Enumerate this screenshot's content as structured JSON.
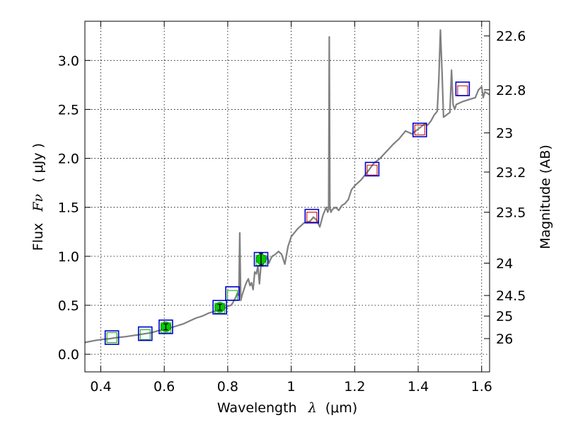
{
  "chart_data": {
    "type": "line",
    "xlabel": "Wavelength",
    "xlabel_symbol": "λ",
    "xlabel_unit": "(μm)",
    "ylabel_prefix": "Flux",
    "ylabel_symbol": "Fν",
    "ylabel_unit": "( μJy )",
    "right_label": "Magnitude (AB)",
    "xlim": [
      0.35,
      1.625
    ],
    "ylim": [
      -0.18,
      3.4
    ],
    "grid": true,
    "x_ticks": [
      {
        "value": 0.4,
        "label": "0.4"
      },
      {
        "value": 0.6,
        "label": "0.6"
      },
      {
        "value": 0.8,
        "label": "0.8"
      },
      {
        "value": 1.0,
        "label": "1"
      },
      {
        "value": 1.2,
        "label": "1.2"
      },
      {
        "value": 1.4,
        "label": "1.4"
      },
      {
        "value": 1.6,
        "label": "1.6"
      }
    ],
    "y_ticks": [
      {
        "value": 0.0,
        "label": "0.0"
      },
      {
        "value": 0.5,
        "label": "0.5"
      },
      {
        "value": 1.0,
        "label": "1.0"
      },
      {
        "value": 1.5,
        "label": "1.5"
      },
      {
        "value": 2.0,
        "label": "2.0"
      },
      {
        "value": 2.5,
        "label": "2.5"
      },
      {
        "value": 3.0,
        "label": "3.0"
      }
    ],
    "mag_ticks": [
      {
        "flux": 3.25,
        "label": "22.6"
      },
      {
        "flux": 2.7,
        "label": "22.8"
      },
      {
        "flux": 2.26,
        "label": "23"
      },
      {
        "flux": 1.86,
        "label": "23.2"
      },
      {
        "flux": 1.45,
        "label": "23.5"
      },
      {
        "flux": 0.93,
        "label": "24"
      },
      {
        "flux": 0.6,
        "label": "24.5"
      },
      {
        "flux": 0.39,
        "label": "25"
      },
      {
        "flux": 0.16,
        "label": "26"
      }
    ],
    "model_spectrum": {
      "name": "model SED",
      "color": "#808080",
      "x": [
        0.35,
        0.38,
        0.4,
        0.43,
        0.45,
        0.48,
        0.5,
        0.52,
        0.54,
        0.56,
        0.58,
        0.6,
        0.62,
        0.64,
        0.66,
        0.68,
        0.7,
        0.72,
        0.74,
        0.76,
        0.77,
        0.78,
        0.79,
        0.8,
        0.81,
        0.815,
        0.82,
        0.825,
        0.83,
        0.835,
        0.838,
        0.841,
        0.845,
        0.85,
        0.855,
        0.86,
        0.865,
        0.87,
        0.875,
        0.88,
        0.885,
        0.89,
        0.895,
        0.9,
        0.905,
        0.91,
        0.915,
        0.92,
        0.925,
        0.93,
        0.935,
        0.94,
        0.95,
        0.96,
        0.97,
        0.98,
        0.99,
        1.0,
        1.02,
        1.04,
        1.06,
        1.07,
        1.08,
        1.09,
        1.1,
        1.11,
        1.115,
        1.118,
        1.12,
        1.122,
        1.125,
        1.13,
        1.14,
        1.15,
        1.16,
        1.17,
        1.18,
        1.19,
        1.2,
        1.22,
        1.24,
        1.26,
        1.28,
        1.3,
        1.32,
        1.34,
        1.36,
        1.38,
        1.4,
        1.42,
        1.43,
        1.44,
        1.45,
        1.46,
        1.465,
        1.47,
        1.475,
        1.48,
        1.5,
        1.505,
        1.51,
        1.515,
        1.52,
        1.54,
        1.56,
        1.58,
        1.59,
        1.6,
        1.605,
        1.61,
        1.625
      ],
      "y": [
        0.12,
        0.14,
        0.15,
        0.16,
        0.17,
        0.18,
        0.19,
        0.2,
        0.21,
        0.22,
        0.24,
        0.25,
        0.27,
        0.29,
        0.31,
        0.34,
        0.37,
        0.39,
        0.42,
        0.44,
        0.45,
        0.46,
        0.47,
        0.49,
        0.5,
        0.52,
        0.55,
        0.58,
        0.62,
        0.6,
        1.24,
        0.55,
        0.6,
        0.65,
        0.7,
        0.74,
        0.77,
        0.7,
        0.73,
        0.66,
        0.84,
        0.82,
        0.9,
        0.72,
        0.92,
        0.9,
        0.95,
        0.96,
        1.0,
        0.93,
        0.97,
        1.0,
        1.02,
        1.05,
        1.02,
        0.92,
        1.1,
        1.2,
        1.28,
        1.34,
        1.36,
        1.4,
        1.37,
        1.3,
        1.42,
        1.5,
        1.45,
        1.48,
        3.24,
        1.5,
        1.45,
        1.48,
        1.5,
        1.47,
        1.52,
        1.54,
        1.58,
        1.68,
        1.72,
        1.78,
        1.86,
        1.95,
        2.0,
        2.07,
        2.14,
        2.2,
        2.28,
        2.25,
        2.3,
        2.35,
        2.34,
        2.38,
        2.44,
        2.48,
        2.8,
        3.31,
        2.9,
        2.42,
        2.47,
        2.9,
        2.55,
        2.5,
        2.55,
        2.58,
        2.6,
        2.62,
        2.7,
        2.73,
        2.62,
        2.68,
        2.65
      ]
    },
    "observed_points": {
      "name": "observed",
      "color": "#0000cc",
      "x": [
        0.435,
        0.54,
        0.605,
        0.775,
        0.815,
        0.905,
        1.065,
        1.255,
        1.405,
        1.54
      ],
      "y": [
        0.17,
        0.21,
        0.28,
        0.48,
        0.62,
        0.97,
        1.41,
        1.89,
        2.29,
        2.71
      ]
    },
    "model_points": {
      "name": "model photometry",
      "x": [
        0.435,
        0.54,
        0.605,
        0.775,
        0.815,
        0.905,
        1.065,
        1.255,
        1.405,
        1.54
      ],
      "y": [
        0.17,
        0.2,
        0.27,
        0.47,
        0.6,
        0.96,
        1.4,
        1.88,
        2.29,
        2.69
      ],
      "colors": [
        "#00aa00",
        "#00aa00",
        "#00aa00",
        "#00aa00",
        "#00aa00",
        "#00aa00",
        "#cc0000",
        "#cc0000",
        "#cc0000",
        "#cc0000"
      ]
    },
    "detections": {
      "name": "detections",
      "color": "#00cc00",
      "x": [
        0.605,
        0.775,
        0.905
      ],
      "y": [
        0.28,
        0.48,
        0.97
      ],
      "err": [
        0.03,
        0.03,
        0.06
      ]
    }
  }
}
